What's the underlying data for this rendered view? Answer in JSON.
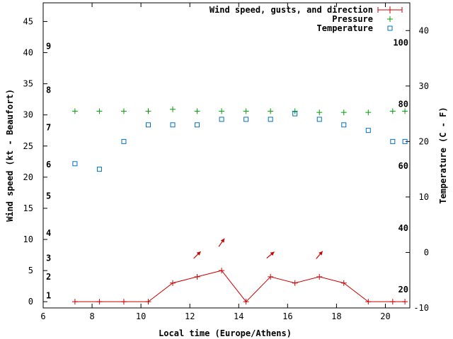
{
  "chart_data": {
    "type": "line",
    "xlabel": "Local time (Europe/Athens)",
    "ylabel": "Wind speed (kt - Beaufort)",
    "y2label": "Temperature (C - F)",
    "grid": false,
    "legend_position": "top-right",
    "xlim": [
      6,
      21
    ],
    "ylim": [
      -1,
      48
    ],
    "y2lim": [
      -10,
      45
    ],
    "x_ticks": [
      6,
      8,
      10,
      12,
      14,
      16,
      18,
      20
    ],
    "y_ticks": [
      0,
      5,
      10,
      15,
      20,
      25,
      30,
      35,
      40,
      45
    ],
    "y2_ticks": [
      -10,
      0,
      10,
      20,
      30,
      40
    ],
    "beaufort_labels": [
      {
        "text": "1",
        "kt": 1
      },
      {
        "text": "2",
        "kt": 4
      },
      {
        "text": "3",
        "kt": 7
      },
      {
        "text": "4",
        "kt": 11
      },
      {
        "text": "5",
        "kt": 17
      },
      {
        "text": "6",
        "kt": 22
      },
      {
        "text": "7",
        "kt": 28
      },
      {
        "text": "8",
        "kt": 34
      },
      {
        "text": "9",
        "kt": 41
      }
    ],
    "fahrenheit_labels": [
      {
        "text": "20",
        "c": -6.7
      },
      {
        "text": "40",
        "c": 4.4
      },
      {
        "text": "60",
        "c": 15.6
      },
      {
        "text": "80",
        "c": 26.7
      },
      {
        "text": "100",
        "c": 37.8
      }
    ],
    "series": [
      {
        "name": "Wind speed, gusts, and direction",
        "color": "#cc0000",
        "x": [
          7.3,
          8.3,
          9.3,
          10.3,
          11.3,
          12.3,
          13.3,
          14.3,
          15.3,
          16.3,
          17.3,
          18.3,
          19.3,
          20.3,
          20.8
        ],
        "y": [
          0,
          0,
          0,
          0,
          3,
          4,
          5,
          0,
          4,
          3,
          4,
          3,
          0,
          0,
          0
        ]
      },
      {
        "name": "Pressure",
        "color": "#00a000",
        "x": [
          7.3,
          8.3,
          9.3,
          10.3,
          11.3,
          12.3,
          13.3,
          14.3,
          15.3,
          16.3,
          17.3,
          18.3,
          19.3,
          20.3,
          20.8
        ],
        "y": [
          30.6,
          30.6,
          30.6,
          30.6,
          30.9,
          30.6,
          30.6,
          30.6,
          30.6,
          30.6,
          30.4,
          30.4,
          30.4,
          30.6,
          30.6
        ]
      },
      {
        "name": "Temperature",
        "color": "#0070c0",
        "axis": "y2",
        "x": [
          7.3,
          8.3,
          9.3,
          10.3,
          11.3,
          12.3,
          13.3,
          14.3,
          15.3,
          16.3,
          17.3,
          18.3,
          19.3,
          20.3,
          20.8
        ],
        "y": [
          16,
          15,
          20,
          23,
          23,
          23,
          24,
          24,
          24,
          25,
          24,
          23,
          22,
          20,
          20
        ]
      }
    ],
    "wind_direction_arrows": [
      {
        "x": 12.3,
        "kt": 7.5,
        "toward_deg": 45
      },
      {
        "x": 13.3,
        "kt": 9.5,
        "toward_deg": 35
      },
      {
        "x": 15.3,
        "kt": 7.5,
        "toward_deg": 50
      },
      {
        "x": 17.3,
        "kt": 7.5,
        "toward_deg": 40
      }
    ]
  }
}
